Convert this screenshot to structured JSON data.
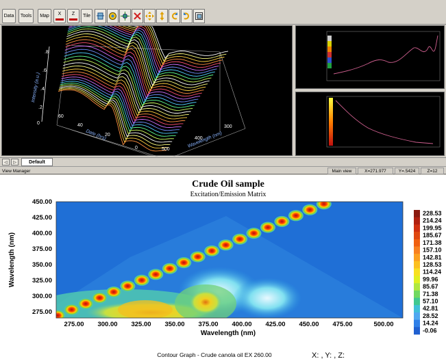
{
  "toolbar": {
    "buttons": [
      "Data",
      "Tools",
      "Map"
    ],
    "axis_buttons": [
      "X",
      "Z"
    ],
    "tile": "Tile"
  },
  "plot3d": {
    "y_ticks": [
      ".8",
      ".6",
      ".4",
      ".2",
      "0"
    ],
    "ylabel": "Intensity (a.u.)",
    "date_ticks": [
      "60",
      "40",
      "20",
      "0"
    ],
    "date_label": "Date (hrs)",
    "wl_ticks": [
      "300",
      "400",
      "500"
    ],
    "wl_label": "Wavelength (nm)"
  },
  "tabs": {
    "default": "Default"
  },
  "status": {
    "left": "View Manager",
    "view": "Main view",
    "x": "X=271.977",
    "y": "Y=.5424",
    "z": "Z=12"
  },
  "chart_data": {
    "type": "heatmap",
    "title": "Crude Oil sample",
    "subtitle": "Excitation/Emission Matrix",
    "xlabel": "Wavelength (nm)",
    "ylabel": "Wavelength (nm)",
    "x_ticks": [
      "275.00",
      "300.00",
      "325.00",
      "350.00",
      "375.00",
      "400.00",
      "425.00",
      "450.00",
      "475.00",
      "500.00"
    ],
    "y_ticks": [
      "450.00",
      "425.00",
      "400.00",
      "375.00",
      "350.00",
      "325.00",
      "300.00",
      "275.00"
    ],
    "xlim": [
      265,
      500
    ],
    "ylim": [
      262,
      450
    ],
    "colorbar_levels": [
      "228.53",
      "214.24",
      "199.95",
      "185.67",
      "171.38",
      "157.10",
      "142.81",
      "128.53",
      "114.24",
      "99.96",
      "85.67",
      "71.38",
      "57.10",
      "42.81",
      "28.52",
      "14.24",
      "-0.06"
    ],
    "footer": "Contour Graph - Crude canola oil EX 260.00",
    "cursor_readout": "X: , Y: , Z:"
  }
}
